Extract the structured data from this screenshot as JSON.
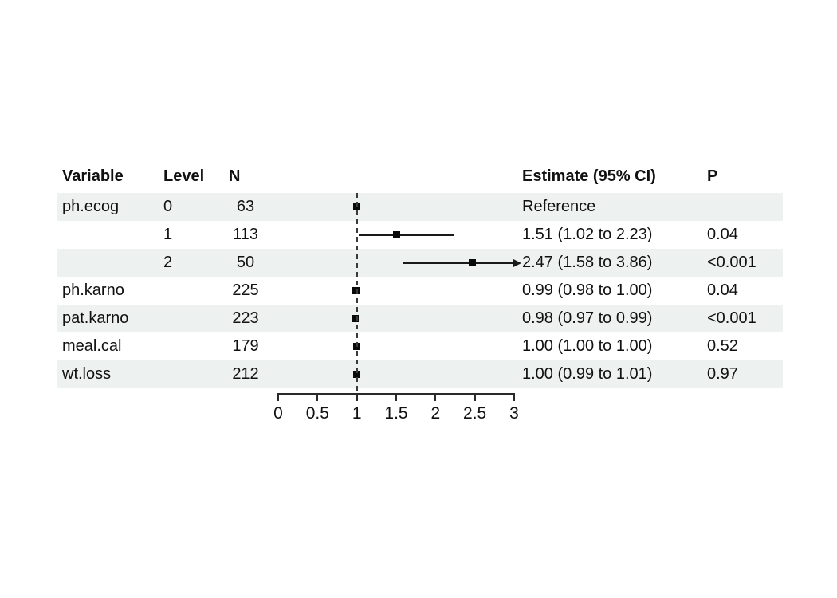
{
  "table": {
    "headers": {
      "variable": "Variable",
      "level": "Level",
      "n": "N",
      "estimate": "Estimate (95% CI)",
      "p": "P"
    }
  },
  "chart_data": {
    "type": "forest",
    "title": "",
    "xlabel": "",
    "axis": {
      "min": 0,
      "max": 3,
      "ticks": [
        0,
        0.5,
        1,
        1.5,
        2,
        2.5,
        3
      ],
      "tick_labels": [
        "0",
        "0.5",
        "1",
        "1.5",
        "2",
        "2.5",
        "3"
      ],
      "reference_line": 1
    },
    "rows": [
      {
        "variable": "ph.ecog",
        "level": "0",
        "n": "63",
        "estimate_label": "Reference",
        "p": "",
        "estimate": 1.0,
        "ci_low": null,
        "ci_high": null,
        "reference": true
      },
      {
        "variable": "",
        "level": "1",
        "n": "113",
        "estimate_label": "1.51 (1.02 to 2.23)",
        "p": "0.04",
        "estimate": 1.51,
        "ci_low": 1.02,
        "ci_high": 2.23
      },
      {
        "variable": "",
        "level": "2",
        "n": "50",
        "estimate_label": "2.47 (1.58 to 3.86)",
        "p": "<0.001",
        "estimate": 2.47,
        "ci_low": 1.58,
        "ci_high": 3.86
      },
      {
        "variable": "ph.karno",
        "level": "",
        "n": "225",
        "estimate_label": "0.99 (0.98 to 1.00)",
        "p": "0.04",
        "estimate": 0.99,
        "ci_low": 0.98,
        "ci_high": 1.0
      },
      {
        "variable": "pat.karno",
        "level": "",
        "n": "223",
        "estimate_label": "0.98 (0.97 to 0.99)",
        "p": "<0.001",
        "estimate": 0.98,
        "ci_low": 0.97,
        "ci_high": 0.99
      },
      {
        "variable": "meal.cal",
        "level": "",
        "n": "179",
        "estimate_label": "1.00 (1.00 to 1.00)",
        "p": "0.52",
        "estimate": 1.0,
        "ci_low": 1.0,
        "ci_high": 1.0
      },
      {
        "variable": "wt.loss",
        "level": "",
        "n": "212",
        "estimate_label": "1.00 (0.99 to 1.01)",
        "p": "0.97",
        "estimate": 1.0,
        "ci_low": 0.99,
        "ci_high": 1.01
      }
    ]
  },
  "colors": {
    "row_shade": "#edf1ef",
    "marker": "#0a0a0a",
    "ci_line": "#1a1a1a",
    "reference_dash": "#3a3a3a",
    "text": "#111111",
    "background": "#ffffff"
  }
}
